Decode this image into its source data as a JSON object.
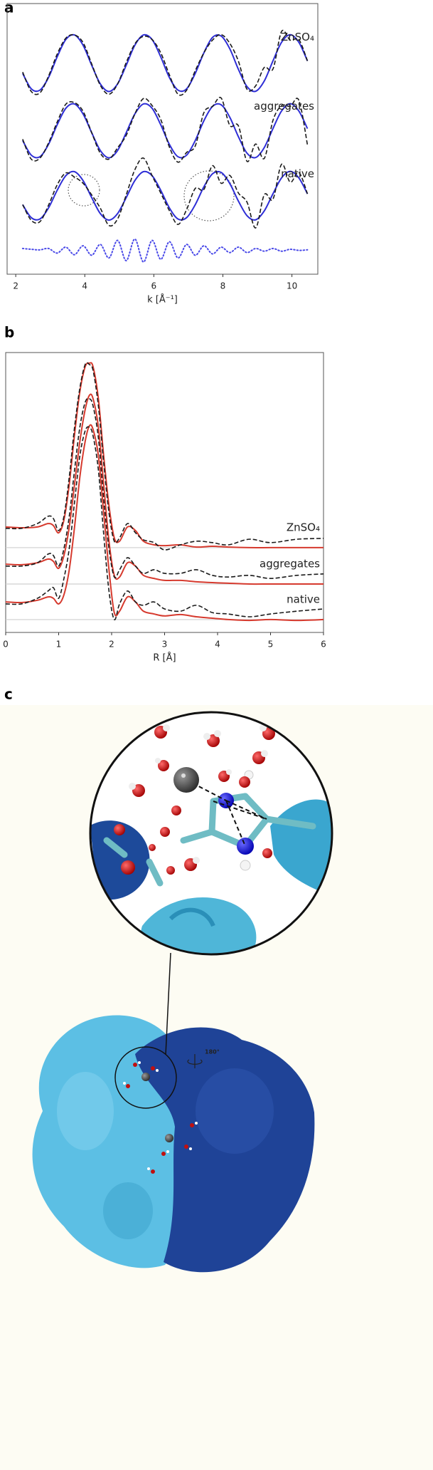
{
  "panels": [
    "a",
    "b",
    "c"
  ],
  "figure_c": {
    "rotation_label": "180°"
  },
  "chart_data": [
    {
      "type": "line",
      "xlabel": "k [Å⁻¹]",
      "xlim": [
        1.75,
        10.75
      ],
      "xticks": [
        2,
        4,
        6,
        8,
        10
      ],
      "ylim": [
        0,
        10
      ],
      "fit_color": "#2e2ed6",
      "data_color": "#1a1a1a",
      "x": [
        2.2,
        2.45,
        2.7,
        2.95,
        3.2,
        3.45,
        3.7,
        3.95,
        4.2,
        4.45,
        4.7,
        4.95,
        5.2,
        5.45,
        5.7,
        5.95,
        6.2,
        6.45,
        6.7,
        6.95,
        7.2,
        7.45,
        7.7,
        7.95,
        8.2,
        8.45,
        8.7,
        8.95,
        9.2,
        9.45,
        9.7,
        9.95,
        10.2,
        10.45
      ],
      "series": [
        {
          "name": "ZnSO₄",
          "fit": [
            7.42,
            6.85,
            6.8,
            7.27,
            8.03,
            8.67,
            8.84,
            8.46,
            7.72,
            7.03,
            6.75,
            7.03,
            7.72,
            8.46,
            8.84,
            8.67,
            8.03,
            7.27,
            6.8,
            6.85,
            7.42,
            8.18,
            8.75,
            8.8,
            8.33,
            7.57,
            6.93,
            6.76,
            7.14,
            7.88,
            8.57,
            8.85,
            8.57,
            7.88
          ],
          "data": [
            7.47,
            6.75,
            6.7,
            7.32,
            8.13,
            8.72,
            8.84,
            8.56,
            7.77,
            6.98,
            6.65,
            7.03,
            7.82,
            8.51,
            8.79,
            8.67,
            8.18,
            7.37,
            6.65,
            6.8,
            7.52,
            8.18,
            8.65,
            8.85,
            8.53,
            7.87,
            6.83,
            6.96,
            7.64,
            7.58,
            8.97,
            8.65,
            8.67,
            7.88
          ]
        },
        {
          "name": "aggregates",
          "fit": [
            4.94,
            4.4,
            4.34,
            4.8,
            5.52,
            6.13,
            6.29,
            5.92,
            5.23,
            4.57,
            4.3,
            4.57,
            5.23,
            5.92,
            6.29,
            6.13,
            5.52,
            4.8,
            4.34,
            4.4,
            4.94,
            5.67,
            6.2,
            6.26,
            5.8,
            5.08,
            4.47,
            4.31,
            4.68,
            5.38,
            6.03,
            6.3,
            6.03,
            5.38
          ],
          "data": [
            4.99,
            4.25,
            4.29,
            4.85,
            5.62,
            6.28,
            6.34,
            6.02,
            5.23,
            4.47,
            4.25,
            4.67,
            5.13,
            5.92,
            6.49,
            6.23,
            5.72,
            4.7,
            4.14,
            4.5,
            4.74,
            5.97,
            6.2,
            6.51,
            5.5,
            5.48,
            4.17,
            4.81,
            4.28,
            5.68,
            6.23,
            6.2,
            6.43,
            4.78
          ]
        },
        {
          "name": "native",
          "fit": [
            2.57,
            2.09,
            2.04,
            2.45,
            3.1,
            3.64,
            3.79,
            3.46,
            2.83,
            2.24,
            2.0,
            2.24,
            2.83,
            3.46,
            3.79,
            3.64,
            3.1,
            2.45,
            2.04,
            2.09,
            2.57,
            3.23,
            3.71,
            3.76,
            3.35,
            2.7,
            2.16,
            2.01,
            2.34,
            2.97,
            3.56,
            3.8,
            3.56,
            2.97
          ],
          "data": [
            2.57,
            1.99,
            1.94,
            2.55,
            3.3,
            3.74,
            3.59,
            3.36,
            2.93,
            2.44,
            1.8,
            2.04,
            2.93,
            3.86,
            4.29,
            3.64,
            3.0,
            2.35,
            1.84,
            2.39,
            3.17,
            3.13,
            4.01,
            3.36,
            3.65,
            3.0,
            2.66,
            1.71,
            2.94,
            2.77,
            4.06,
            3.4,
            3.76,
            2.97
          ]
        }
      ],
      "residual": {
        "color": "#4a4ae8",
        "values": [
          0.95,
          0.92,
          0.9,
          0.95,
          0.78,
          1.0,
          0.72,
          1.05,
          0.7,
          1.1,
          0.6,
          1.25,
          0.5,
          1.3,
          0.45,
          1.25,
          0.55,
          1.2,
          0.6,
          1.1,
          0.7,
          1.05,
          0.75,
          1.0,
          0.8,
          1.0,
          0.8,
          0.95,
          0.85,
          0.95,
          0.85,
          0.92,
          0.88,
          0.9
        ]
      }
    },
    {
      "type": "line",
      "xlabel": "R [Å]",
      "xlim": [
        0,
        6
      ],
      "xticks": [
        0,
        1,
        2,
        3,
        4,
        5,
        6
      ],
      "ylim": [
        0,
        10
      ],
      "fit_color": "#d63a2e",
      "data_color": "#1a1a1a",
      "baseline_color": "#cfcfcf",
      "x": [
        0,
        0.3,
        0.6,
        0.8,
        0.9,
        1.0,
        1.1,
        1.2,
        1.3,
        1.4,
        1.5,
        1.58,
        1.65,
        1.75,
        1.85,
        1.95,
        2.05,
        2.15,
        2.3,
        2.45,
        2.6,
        2.8,
        3.0,
        3.3,
        3.6,
        3.9,
        4.2,
        4.6,
        5.0,
        5.5,
        6.0
      ],
      "series": [
        {
          "name": "ZnSO₄",
          "baseline": 3.03,
          "fit": [
            3.77,
            3.74,
            3.77,
            3.89,
            3.82,
            3.56,
            4.02,
            5.29,
            7.07,
            8.6,
            9.49,
            9.62,
            9.49,
            8.35,
            6.31,
            4.53,
            3.38,
            3.26,
            3.77,
            3.64,
            3.26,
            3.13,
            3.1,
            3.13,
            3.05,
            3.08,
            3.05,
            3.03,
            3.03,
            3.03,
            3.03
          ],
          "data": [
            3.72,
            3.72,
            3.89,
            4.15,
            4.07,
            3.64,
            4.15,
            5.55,
            7.33,
            8.73,
            9.57,
            9.57,
            9.36,
            8.09,
            6.06,
            4.27,
            3.26,
            3.38,
            3.89,
            3.56,
            3.31,
            3.21,
            2.95,
            3.13,
            3.26,
            3.21,
            3.13,
            3.33,
            3.21,
            3.33,
            3.36
          ]
        },
        {
          "name": "aggregates",
          "baseline": 1.73,
          "fit": [
            2.44,
            2.42,
            2.49,
            2.62,
            2.54,
            2.29,
            2.75,
            3.77,
            5.29,
            6.82,
            7.96,
            8.47,
            8.35,
            7.33,
            5.29,
            3.26,
            2.04,
            1.98,
            2.49,
            2.37,
            2.04,
            1.93,
            1.86,
            1.86,
            1.81,
            1.78,
            1.76,
            1.73,
            1.73,
            1.73,
            1.73
          ],
          "data": [
            2.37,
            2.37,
            2.49,
            2.8,
            2.75,
            2.37,
            3.0,
            4.15,
            5.8,
            7.33,
            8.22,
            8.35,
            8.09,
            6.95,
            4.78,
            3.0,
            1.98,
            2.24,
            2.67,
            2.37,
            2.11,
            2.24,
            2.11,
            2.11,
            2.24,
            2.04,
            1.98,
            2.04,
            1.93,
            2.04,
            2.09
          ]
        },
        {
          "name": "native",
          "baseline": 0.46,
          "fit": [
            1.09,
            1.07,
            1.15,
            1.27,
            1.22,
            1.02,
            1.35,
            2.24,
            3.77,
            5.55,
            6.82,
            7.38,
            7.25,
            6.31,
            4.27,
            2.24,
            0.71,
            0.76,
            1.27,
            1.09,
            0.76,
            0.66,
            0.59,
            0.64,
            0.56,
            0.51,
            0.46,
            0.43,
            0.46,
            0.43,
            0.46
          ],
          "data": [
            1.02,
            1.02,
            1.22,
            1.48,
            1.6,
            1.22,
            1.93,
            3.0,
            4.66,
            6.31,
            7.2,
            7.33,
            7.02,
            5.8,
            3.51,
            1.48,
            0.46,
            1.02,
            1.48,
            1.09,
            0.97,
            1.09,
            0.84,
            0.76,
            0.97,
            0.71,
            0.66,
            0.56,
            0.66,
            0.76,
            0.84
          ]
        }
      ]
    }
  ]
}
